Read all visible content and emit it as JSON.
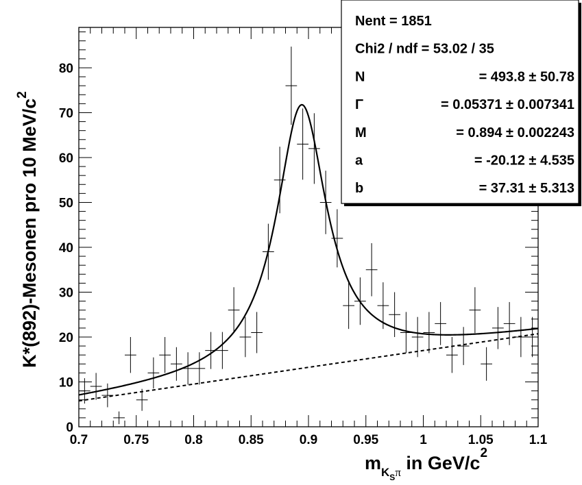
{
  "chart_data": {
    "type": "scatter",
    "xlabel": {
      "main": "m",
      "sub": "K",
      "subsub": "S",
      "sub2": "π",
      "rest": " in GeV/c",
      "sup": "2"
    },
    "ylabel": {
      "main": "K*(892)-Mesonen pro 10 MeV/c",
      "sup": "2"
    },
    "xlim": [
      0.7,
      1.1
    ],
    "ylim": [
      0,
      89
    ],
    "x_ticks": [
      0.7,
      0.75,
      0.8,
      0.85,
      0.9,
      0.95,
      1.0,
      1.05,
      1.1
    ],
    "x_tick_labels": [
      "0.7",
      "0.75",
      "0.8",
      "0.85",
      "0.9",
      "0.95",
      "1",
      "1.05",
      "1.1"
    ],
    "y_ticks": [
      0,
      10,
      20,
      30,
      40,
      50,
      60,
      70,
      80
    ],
    "y_tick_labels": [
      "0",
      "10",
      "20",
      "30",
      "40",
      "50",
      "60",
      "70",
      "80"
    ],
    "grid": false,
    "bin_width": 0.01,
    "series": [
      {
        "x": [
          0.705,
          0.715,
          0.725,
          0.735,
          0.745,
          0.755,
          0.765,
          0.775,
          0.785,
          0.795,
          0.805,
          0.815,
          0.825,
          0.835,
          0.845,
          0.855,
          0.865,
          0.875,
          0.885,
          0.895,
          0.905,
          0.915,
          0.925,
          0.935,
          0.945,
          0.955,
          0.965,
          0.975,
          0.985,
          0.995,
          1.005,
          1.015,
          1.025,
          1.035,
          1.045,
          1.055,
          1.065,
          1.075,
          1.085,
          1.095
        ],
        "y": [
          8,
          9,
          7,
          2,
          16,
          6,
          12,
          16,
          14,
          13,
          13,
          17,
          17,
          26,
          20,
          21,
          39,
          55,
          76,
          63,
          62,
          50,
          42,
          27,
          28,
          35,
          27,
          25,
          21,
          20,
          21,
          23,
          16,
          18,
          26,
          14,
          22,
          23,
          20,
          20
        ]
      },
      {
        "x": [
          0.7,
          1.1
        ],
        "y": [
          5.77,
          20.73
        ]
      },
      {
        "peak_mass": 0.894,
        "width": 0.05371,
        "amplitude": 493.8,
        "a": -20.12,
        "b": 37.31
      }
    ],
    "stats_box": {
      "position": "top-right",
      "rows": [
        {
          "label": "Nent = 1851",
          "value": ""
        },
        {
          "label": "Chi2 / ndf = 53.02 / 35",
          "value": ""
        },
        {
          "label": "N",
          "value": "= 493.8 ± 50.78"
        },
        {
          "label": "Γ",
          "value": "= 0.05371 ± 0.007341"
        },
        {
          "label": "M",
          "value": "= 0.894 ± 0.002243"
        },
        {
          "label": "a",
          "value": "= -20.12 ± 4.535"
        },
        {
          "label": "b",
          "value": "= 37.31 ± 5.313"
        }
      ]
    }
  }
}
